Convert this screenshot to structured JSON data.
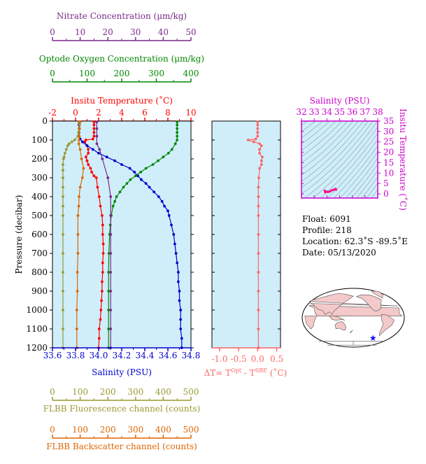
{
  "colors": {
    "panel_bg": "#cfeefa",
    "temperature": "#ff0000",
    "salinity": "#0000cc",
    "oxygen": "#008800",
    "nitrate": "#7a2a8a",
    "fluorescence": "#999933",
    "backscatter": "#dd6600",
    "delta_t": "#ff6666",
    "ts_axis": "#cc00cc",
    "ts_point": "#ff1493",
    "contour": "#8fa7b3",
    "land": "#f4c9c9",
    "float_marker": "#0000ff"
  },
  "chart_data": [
    {
      "type": "line",
      "name": "main-profile",
      "ylabel": "Pressure (decibar)",
      "ylim": [
        1200,
        0
      ],
      "yticks": [
        "0",
        "100",
        "200",
        "300",
        "400",
        "500",
        "600",
        "700",
        "800",
        "900",
        "1000",
        "1100",
        "1200"
      ],
      "axes": {
        "nitrate": {
          "label": "Nitrate Concentration (μm/kg)",
          "range": [
            0,
            50
          ],
          "ticks": [
            "0",
            "10",
            "20",
            "30",
            "40",
            "50"
          ]
        },
        "oxygen": {
          "label": "Optode Oxygen Concentration (μm/kg)",
          "range": [
            0,
            400
          ],
          "ticks": [
            "0",
            "100",
            "200",
            "300",
            "400"
          ]
        },
        "temperature": {
          "label": "Insitu Temperature (˚C)",
          "range": [
            -2,
            10
          ],
          "ticks": [
            "-2",
            "0",
            "2",
            "4",
            "6",
            "8",
            "10"
          ]
        },
        "salinity": {
          "label": "Salinity (PSU)",
          "range": [
            33.6,
            34.8
          ],
          "ticks": [
            "33.6",
            "33.8",
            "34.0",
            "34.2",
            "34.4",
            "34.6",
            "34.8"
          ]
        },
        "fluorescence": {
          "label": "FLBB Fluorescence channel (counts)",
          "range": [
            0,
            500
          ],
          "ticks": [
            "0",
            "100",
            "200",
            "300",
            "400",
            "500"
          ]
        },
        "backscatter": {
          "label": "FLBB Backscatter channel (counts)",
          "range": [
            0,
            500
          ],
          "ticks": [
            "0",
            "100",
            "200",
            "300",
            "400",
            "500"
          ]
        }
      },
      "series": [
        {
          "key": "temperature",
          "pressure": [
            5,
            20,
            40,
            60,
            80,
            95,
            100,
            110,
            130,
            150,
            170,
            190,
            210,
            230,
            250,
            270,
            290,
            300,
            350,
            400,
            450,
            500,
            550,
            600,
            650,
            700,
            750,
            800,
            850,
            900,
            950,
            1000,
            1050,
            1100,
            1150,
            1200
          ],
          "values": [
            1.6,
            1.6,
            1.6,
            1.6,
            1.6,
            1.5,
            0.9,
            0.8,
            1.0,
            1.1,
            1.1,
            0.9,
            1.0,
            1.1,
            1.3,
            1.4,
            1.6,
            1.8,
            1.9,
            2.05,
            2.15,
            2.3,
            2.35,
            2.35,
            2.4,
            2.4,
            2.35,
            2.35,
            2.3,
            2.3,
            2.25,
            2.2,
            2.15,
            2.05,
            2.05,
            2.0
          ]
        },
        {
          "key": "salinity",
          "pressure": [
            5,
            20,
            40,
            60,
            80,
            95,
            110,
            130,
            150,
            170,
            190,
            210,
            230,
            250,
            270,
            290,
            310,
            330,
            350,
            375,
            400,
            425,
            450,
            475,
            500,
            550,
            600,
            650,
            700,
            750,
            800,
            850,
            900,
            950,
            1000,
            1050,
            1100,
            1150,
            1200
          ],
          "values": [
            33.83,
            33.83,
            33.83,
            33.83,
            33.83,
            33.84,
            33.86,
            33.9,
            33.95,
            34.0,
            34.07,
            34.14,
            34.2,
            34.27,
            34.31,
            34.34,
            34.37,
            34.41,
            34.44,
            34.48,
            34.52,
            34.55,
            34.57,
            34.6,
            34.61,
            34.63,
            34.65,
            34.66,
            34.67,
            34.68,
            34.69,
            34.69,
            34.7,
            34.7,
            34.71,
            34.71,
            34.71,
            34.72,
            34.72
          ]
        },
        {
          "key": "oxygen",
          "pressure": [
            5,
            20,
            40,
            60,
            80,
            100,
            120,
            150,
            170,
            190,
            210,
            230,
            250,
            270,
            290,
            310,
            330,
            350,
            375,
            400,
            425,
            450,
            500,
            550,
            600,
            700,
            800,
            900,
            1000,
            1100,
            1200
          ],
          "values": [
            360,
            360,
            360,
            360,
            360,
            360,
            355,
            345,
            335,
            320,
            305,
            290,
            270,
            255,
            240,
            225,
            215,
            205,
            195,
            185,
            180,
            175,
            170,
            167,
            165,
            163,
            162,
            162,
            162,
            162,
            162
          ]
        },
        {
          "key": "nitrate",
          "pressure": [
            5,
            40,
            80,
            120,
            150,
            200,
            300,
            400,
            500,
            600,
            700,
            800,
            900,
            1000,
            1100,
            1200
          ],
          "values": [
            16,
            16,
            16,
            16,
            17,
            18,
            20,
            21,
            21,
            21,
            21,
            21,
            21,
            21,
            21,
            21
          ]
        },
        {
          "key": "fluorescence",
          "pressure": [
            5,
            20,
            40,
            60,
            80,
            100,
            110,
            120,
            130,
            150,
            170,
            190,
            200,
            230,
            260,
            300,
            350,
            400,
            450,
            500,
            600,
            700,
            800,
            900,
            1000,
            1100,
            1200
          ],
          "values": [
            95,
            98,
            96,
            94,
            92,
            80,
            70,
            60,
            55,
            50,
            45,
            42,
            40,
            38,
            38,
            38,
            38,
            38,
            38,
            38,
            38,
            38,
            38,
            38,
            38,
            38,
            38
          ]
        },
        {
          "key": "backscatter",
          "pressure": [
            5,
            40,
            80,
            100,
            120,
            150,
            200,
            250,
            300,
            350,
            400,
            450,
            500,
            600,
            700,
            800,
            900,
            1000,
            1100,
            1200
          ],
          "values": [
            100,
            98,
            97,
            96,
            95,
            100,
            105,
            112,
            108,
            100,
            96,
            95,
            92,
            92,
            92,
            90,
            90,
            88,
            88,
            88
          ]
        }
      ]
    },
    {
      "type": "line",
      "name": "delta-t",
      "xlabel_main": "ΔT= T",
      "xlabel_sup1": "Opt",
      "xlabel_mid": " - T",
      "xlabel_sup2": "SBE",
      "xlabel_end": " (˚C)",
      "xlim": [
        -1.2,
        0.6
      ],
      "xticks": [
        "-1.0",
        "-0.5",
        "0.0",
        "0.5"
      ],
      "pressure": [
        5,
        20,
        40,
        60,
        80,
        95,
        100,
        110,
        120,
        130,
        150,
        170,
        190,
        210,
        230,
        250,
        300,
        350,
        400,
        450,
        500,
        600,
        700,
        800,
        900,
        1000,
        1100,
        1200
      ],
      "values": [
        0.0,
        0.0,
        0.0,
        0.0,
        0.0,
        -0.05,
        -0.25,
        -0.1,
        0.05,
        0.1,
        0.05,
        0.05,
        0.12,
        0.1,
        0.1,
        0.05,
        0.03,
        0.02,
        0.02,
        0.02,
        0.02,
        0.02,
        0.02,
        0.02,
        0.02,
        0.02,
        0.02,
        0.02
      ]
    },
    {
      "type": "scatter",
      "name": "ts-diagram",
      "xlabel": "Salinity (PSU)",
      "ylabel": "Insitu Temperature (˚C)",
      "xlim": [
        32,
        38
      ],
      "ylim": [
        -2,
        35
      ],
      "xticks": [
        "32",
        "33",
        "34",
        "35",
        "36",
        "37",
        "38"
      ],
      "yticks": [
        "0",
        "5",
        "10",
        "15",
        "20",
        "25",
        "30",
        "35"
      ],
      "salinity": [
        33.83,
        33.84,
        33.86,
        33.9,
        33.95,
        34.0,
        34.07,
        34.14,
        34.2,
        34.27,
        34.34,
        34.41,
        34.48,
        34.55,
        34.6,
        34.65,
        34.68,
        34.7,
        34.72
      ],
      "temperature": [
        1.6,
        1.5,
        0.8,
        1.0,
        1.1,
        1.1,
        0.9,
        1.0,
        1.1,
        1.3,
        1.6,
        1.8,
        1.9,
        2.05,
        2.15,
        2.3,
        2.4,
        2.3,
        2.0
      ]
    }
  ],
  "info": {
    "float": "Float:  6091",
    "profile": "Profile:  218",
    "location": "Location:  62.3˚S  -89.5˚E",
    "date": "Date:  05/13/2020"
  },
  "map": {
    "float_lon": -89.5,
    "float_lat": -62.3
  }
}
